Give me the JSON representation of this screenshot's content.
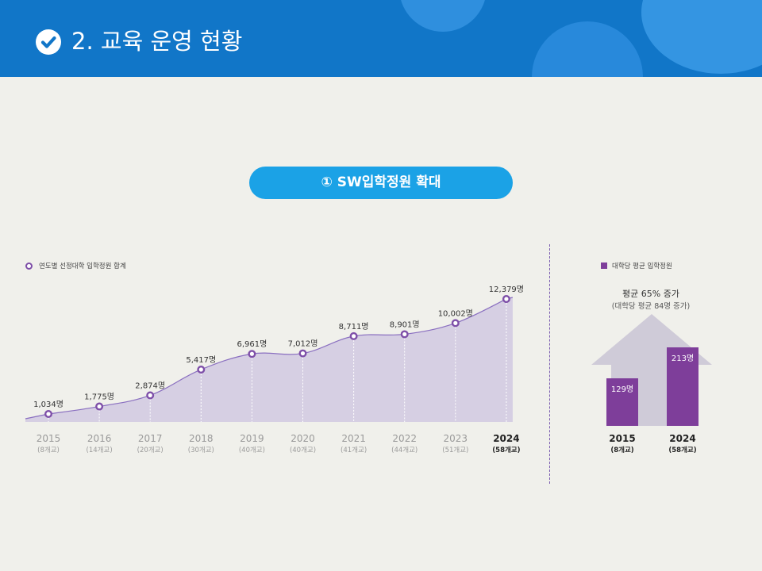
{
  "header": {
    "title": "2. 교육 운영 현황",
    "icon": "check-circle-icon",
    "color": "#1176c8"
  },
  "section": {
    "title": "① SW입학정원 확대",
    "color": "#1ba2e6"
  },
  "colors": {
    "area_fill": "#d6cfe3",
    "line": "#8a6fc0",
    "marker": "#7e4fa8",
    "bar": "#7e3e9a",
    "arrow": "#cfcbd8"
  },
  "chart_data": [
    {
      "type": "area",
      "legend": "연도별 선정대학 입학정원 합계",
      "categories": [
        "2015",
        "2016",
        "2017",
        "2018",
        "2019",
        "2020",
        "2021",
        "2022",
        "2023",
        "2024"
      ],
      "sublabels": [
        "(8개교)",
        "(14개교)",
        "(20개교)",
        "(30개교)",
        "(40개교)",
        "(40개교)",
        "(41개교)",
        "(44개교)",
        "(51개교)",
        "(58개교)"
      ],
      "values": [
        1034,
        1775,
        2874,
        5417,
        6961,
        7012,
        8711,
        8901,
        10002,
        12379
      ],
      "data_labels": [
        "1,034명",
        "1,775명",
        "2,874명",
        "5,417명",
        "6,961명",
        "7,012명",
        "8,711명",
        "8,901명",
        "10,002명",
        "12,379명"
      ],
      "highlight_last": true
    },
    {
      "type": "bar",
      "legend": "대학당 평균 입학정원",
      "annotation": "평균 65% 증가",
      "annotation_sub": "(대학당 평균 84명 증가)",
      "categories": [
        "2015",
        "2024"
      ],
      "sublabels": [
        "(8개교)",
        "(58개교)"
      ],
      "values": [
        129,
        213
      ],
      "data_labels": [
        "129명",
        "213명"
      ]
    }
  ]
}
